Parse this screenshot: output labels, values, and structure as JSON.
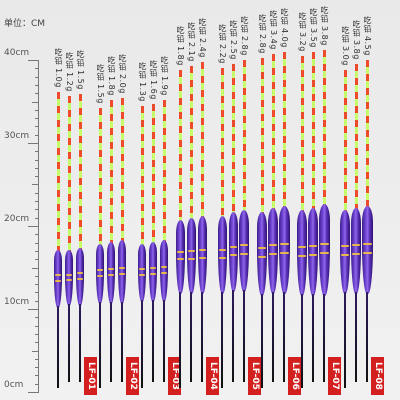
{
  "ruler": {
    "title": "单位：CM",
    "labels": [
      "40cm",
      "30cm",
      "20cm",
      "10cm",
      "0cm"
    ]
  },
  "groups": [
    {
      "code": "LF-01",
      "loads": [
        "吃铅 1.0g",
        "吃铅 1.2g",
        "吃铅 1.5g"
      ]
    },
    {
      "code": "LF-02",
      "loads": [
        "吃铅 1.5g",
        "吃铅 1.8g",
        "吃铅 2.0g"
      ]
    },
    {
      "code": "LF-03",
      "loads": [
        "吃铅 1.3g",
        "吃铅 1.6g",
        "吃铅 1.9g"
      ]
    },
    {
      "code": "LF-04",
      "loads": [
        "吃铅 1.8g",
        "吃铅 2.1g",
        "吃铅 2.4g"
      ]
    },
    {
      "code": "LF-05",
      "loads": [
        "吃铅 2.2g",
        "吃铅 2.5g",
        "吃铅 2.8g"
      ]
    },
    {
      "code": "LF-06",
      "loads": [
        "吃铅 2.8g",
        "吃铅 3.4g",
        "吃铅 4.0g"
      ]
    },
    {
      "code": "LF-07",
      "loads": [
        "吃铅 3.2g",
        "吃铅 3.5g",
        "吃铅 3.8g"
      ]
    },
    {
      "code": "LF-08",
      "loads": [
        "吃铅 3.0g",
        "吃铅 3.8g",
        "吃铅 4.5g"
      ]
    }
  ],
  "colors": {
    "tip_red": "#ee4a2c",
    "tip_green": "#c7ff6a",
    "body_purple": "#6a3fd0",
    "tag_red": "#d41f1f"
  }
}
